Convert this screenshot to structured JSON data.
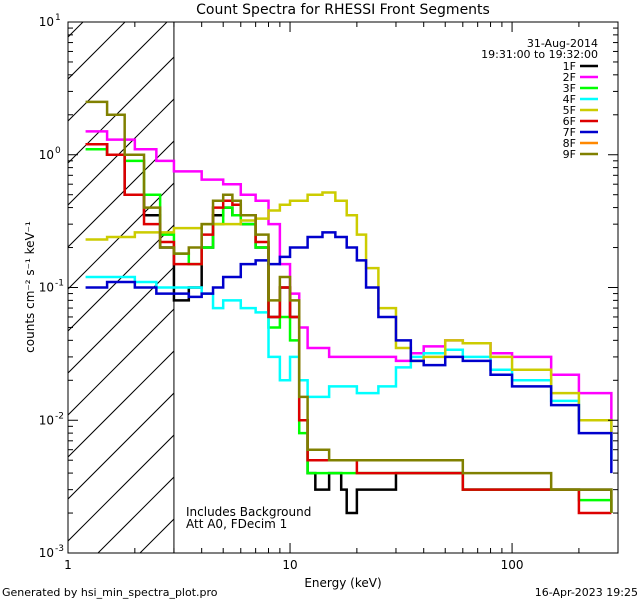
{
  "chart_data": {
    "type": "line",
    "title": "Count Spectra for RHESSI Front Segments",
    "xlabel": "Energy (keV)",
    "ylabel": "counts cm⁻² s⁻¹ keV⁻¹",
    "xscale": "log",
    "yscale": "log",
    "xlim": [
      1,
      300
    ],
    "ylim": [
      0.001,
      10
    ],
    "x_tick_labels": [
      {
        "value": 1,
        "label": "1"
      },
      {
        "value": 10,
        "label": "10"
      },
      {
        "value": 100,
        "label": "100"
      }
    ],
    "y_tick_labels": [
      {
        "value": 0.001,
        "base": "10",
        "exp": "-3"
      },
      {
        "value": 0.01,
        "base": "10",
        "exp": "-2"
      },
      {
        "value": 0.1,
        "base": "10",
        "exp": "-1"
      },
      {
        "value": 1,
        "base": "10",
        "exp": "0"
      },
      {
        "value": 10,
        "base": "10",
        "exp": "1"
      }
    ],
    "date_label": "31-Aug-2014",
    "time_range_label": "19:31:00 to 19:32:00",
    "excluded_region": {
      "x_from": 1,
      "x_to": 3
    },
    "annotations": [
      "Includes Background",
      "Att A0, FDecim 1"
    ],
    "footer_left": "Generated by hsi_min_spectra_plot.pro",
    "footer_right": "16-Apr-2023 19:25",
    "legend_position": "top-right",
    "series": [
      {
        "name": "1F",
        "color": "#000000",
        "points": [
          [
            1.2,
            1.2
          ],
          [
            1.5,
            1.0
          ],
          [
            1.8,
            0.5
          ],
          [
            2.2,
            0.35
          ],
          [
            2.6,
            0.2
          ],
          [
            3,
            0.08
          ],
          [
            3.5,
            0.1
          ],
          [
            4,
            0.2
          ],
          [
            4.5,
            0.35
          ],
          [
            5,
            0.4
          ],
          [
            5.5,
            0.35
          ],
          [
            6,
            0.3
          ],
          [
            7,
            0.2
          ],
          [
            8,
            0.06
          ],
          [
            9,
            0.1
          ],
          [
            10,
            0.06
          ],
          [
            11,
            0.01
          ],
          [
            12,
            0.004
          ],
          [
            13,
            0.003
          ],
          [
            15,
            0.004
          ],
          [
            17,
            0.003
          ],
          [
            18,
            0.002
          ],
          [
            20,
            0.003
          ],
          [
            25,
            0.003
          ],
          [
            30,
            0.004
          ],
          [
            40,
            0.004
          ],
          [
            60,
            0.003
          ],
          [
            80,
            0.003
          ],
          [
            100,
            0.003
          ],
          [
            150,
            0.003
          ],
          [
            200,
            0.003
          ],
          [
            280,
            0.002
          ]
        ]
      },
      {
        "name": "2F",
        "color": "#ff00ff",
        "points": [
          [
            1.2,
            1.5
          ],
          [
            1.5,
            1.3
          ],
          [
            2,
            1.1
          ],
          [
            2.5,
            0.9
          ],
          [
            3,
            0.75
          ],
          [
            4,
            0.65
          ],
          [
            5,
            0.6
          ],
          [
            6,
            0.5
          ],
          [
            7,
            0.45
          ],
          [
            8,
            0.3
          ],
          [
            9,
            0.15
          ],
          [
            10,
            0.09
          ],
          [
            11,
            0.05
          ],
          [
            12,
            0.035
          ],
          [
            15,
            0.03
          ],
          [
            20,
            0.03
          ],
          [
            25,
            0.03
          ],
          [
            30,
            0.028
          ],
          [
            35,
            0.032
          ],
          [
            40,
            0.036
          ],
          [
            50,
            0.04
          ],
          [
            60,
            0.038
          ],
          [
            80,
            0.032
          ],
          [
            100,
            0.03
          ],
          [
            150,
            0.022
          ],
          [
            200,
            0.016
          ],
          [
            280,
            0.008
          ]
        ]
      },
      {
        "name": "3F",
        "color": "#00ff00",
        "points": [
          [
            1.2,
            1.1
          ],
          [
            1.5,
            1.0
          ],
          [
            1.8,
            0.9
          ],
          [
            2.2,
            0.5
          ],
          [
            2.6,
            0.25
          ],
          [
            3,
            0.18
          ],
          [
            3.5,
            0.15
          ],
          [
            4,
            0.2
          ],
          [
            4.5,
            0.3
          ],
          [
            5,
            0.4
          ],
          [
            5.5,
            0.35
          ],
          [
            6,
            0.3
          ],
          [
            7,
            0.2
          ],
          [
            8,
            0.05
          ],
          [
            9,
            0.06
          ],
          [
            10,
            0.04
          ],
          [
            11,
            0.008
          ],
          [
            12,
            0.004
          ],
          [
            15,
            0.004
          ],
          [
            20,
            0.004
          ],
          [
            25,
            0.004
          ],
          [
            30,
            0.004
          ],
          [
            40,
            0.004
          ],
          [
            60,
            0.003
          ],
          [
            80,
            0.003
          ],
          [
            100,
            0.003
          ],
          [
            150,
            0.003
          ],
          [
            200,
            0.0025
          ],
          [
            280,
            0.002
          ]
        ]
      },
      {
        "name": "4F",
        "color": "#00ffff",
        "points": [
          [
            1.2,
            0.12
          ],
          [
            1.5,
            0.12
          ],
          [
            2,
            0.11
          ],
          [
            2.5,
            0.1
          ],
          [
            3,
            0.1
          ],
          [
            3.5,
            0.1
          ],
          [
            4,
            0.09
          ],
          [
            4.5,
            0.07
          ],
          [
            5,
            0.08
          ],
          [
            6,
            0.07
          ],
          [
            7,
            0.065
          ],
          [
            8,
            0.03
          ],
          [
            9,
            0.02
          ],
          [
            10,
            0.03
          ],
          [
            11,
            0.02
          ],
          [
            12,
            0.015
          ],
          [
            15,
            0.018
          ],
          [
            20,
            0.016
          ],
          [
            25,
            0.018
          ],
          [
            30,
            0.025
          ],
          [
            35,
            0.03
          ],
          [
            40,
            0.032
          ],
          [
            50,
            0.034
          ],
          [
            60,
            0.03
          ],
          [
            80,
            0.024
          ],
          [
            100,
            0.02
          ],
          [
            150,
            0.014
          ],
          [
            200,
            0.01
          ],
          [
            280,
            0.005
          ]
        ]
      },
      {
        "name": "5F",
        "color": "#cccc00",
        "points": [
          [
            1.2,
            0.23
          ],
          [
            1.5,
            0.24
          ],
          [
            2,
            0.26
          ],
          [
            2.5,
            0.26
          ],
          [
            3,
            0.28
          ],
          [
            4,
            0.3
          ],
          [
            5,
            0.3
          ],
          [
            6,
            0.32
          ],
          [
            7,
            0.33
          ],
          [
            8,
            0.38
          ],
          [
            9,
            0.42
          ],
          [
            10,
            0.45
          ],
          [
            12,
            0.5
          ],
          [
            14,
            0.52
          ],
          [
            16,
            0.45
          ],
          [
            18,
            0.35
          ],
          [
            20,
            0.25
          ],
          [
            22,
            0.14
          ],
          [
            25,
            0.07
          ],
          [
            30,
            0.035
          ],
          [
            35,
            0.028
          ],
          [
            40,
            0.03
          ],
          [
            50,
            0.04
          ],
          [
            60,
            0.038
          ],
          [
            80,
            0.03
          ],
          [
            100,
            0.024
          ],
          [
            150,
            0.016
          ],
          [
            200,
            0.01
          ],
          [
            280,
            0.006
          ]
        ]
      },
      {
        "name": "6F",
        "color": "#dd0000",
        "points": [
          [
            1.2,
            1.2
          ],
          [
            1.5,
            1.0
          ],
          [
            1.8,
            0.5
          ],
          [
            2.2,
            0.3
          ],
          [
            2.6,
            0.22
          ],
          [
            3,
            0.15
          ],
          [
            3.5,
            0.15
          ],
          [
            4,
            0.25
          ],
          [
            4.5,
            0.4
          ],
          [
            5,
            0.45
          ],
          [
            5.5,
            0.42
          ],
          [
            6,
            0.35
          ],
          [
            7,
            0.22
          ],
          [
            8,
            0.06
          ],
          [
            9,
            0.1
          ],
          [
            10,
            0.06
          ],
          [
            11,
            0.01
          ],
          [
            12,
            0.005
          ],
          [
            15,
            0.005
          ],
          [
            20,
            0.004
          ],
          [
            25,
            0.004
          ],
          [
            30,
            0.004
          ],
          [
            40,
            0.004
          ],
          [
            60,
            0.003
          ],
          [
            80,
            0.003
          ],
          [
            100,
            0.003
          ],
          [
            150,
            0.003
          ],
          [
            200,
            0.002
          ],
          [
            280,
            0.002
          ]
        ]
      },
      {
        "name": "7F",
        "color": "#0000cc",
        "points": [
          [
            1.2,
            0.1
          ],
          [
            1.5,
            0.11
          ],
          [
            2,
            0.1
          ],
          [
            2.5,
            0.09
          ],
          [
            3,
            0.09
          ],
          [
            3.5,
            0.085
          ],
          [
            4,
            0.09
          ],
          [
            4.5,
            0.1
          ],
          [
            5,
            0.12
          ],
          [
            6,
            0.15
          ],
          [
            7,
            0.16
          ],
          [
            8,
            0.15
          ],
          [
            9,
            0.17
          ],
          [
            10,
            0.2
          ],
          [
            12,
            0.24
          ],
          [
            14,
            0.26
          ],
          [
            16,
            0.24
          ],
          [
            18,
            0.2
          ],
          [
            20,
            0.16
          ],
          [
            22,
            0.1
          ],
          [
            25,
            0.06
          ],
          [
            30,
            0.04
          ],
          [
            35,
            0.028
          ],
          [
            40,
            0.026
          ],
          [
            50,
            0.03
          ],
          [
            60,
            0.028
          ],
          [
            80,
            0.022
          ],
          [
            100,
            0.018
          ],
          [
            150,
            0.013
          ],
          [
            200,
            0.008
          ],
          [
            280,
            0.004
          ]
        ]
      },
      {
        "name": "8F",
        "color": "#ff8800",
        "points": []
      },
      {
        "name": "9F",
        "color": "#808000",
        "points": [
          [
            1.2,
            2.5
          ],
          [
            1.5,
            2.0
          ],
          [
            1.8,
            1.0
          ],
          [
            2.2,
            0.4
          ],
          [
            2.6,
            0.2
          ],
          [
            3,
            0.18
          ],
          [
            3.5,
            0.2
          ],
          [
            4,
            0.3
          ],
          [
            4.5,
            0.45
          ],
          [
            5,
            0.5
          ],
          [
            5.5,
            0.45
          ],
          [
            6,
            0.35
          ],
          [
            7,
            0.25
          ],
          [
            8,
            0.08
          ],
          [
            9,
            0.12
          ],
          [
            10,
            0.08
          ],
          [
            11,
            0.015
          ],
          [
            12,
            0.006
          ],
          [
            15,
            0.005
          ],
          [
            20,
            0.005
          ],
          [
            25,
            0.005
          ],
          [
            30,
            0.005
          ],
          [
            40,
            0.005
          ],
          [
            60,
            0.004
          ],
          [
            80,
            0.004
          ],
          [
            100,
            0.004
          ],
          [
            150,
            0.003
          ],
          [
            200,
            0.003
          ],
          [
            280,
            0.002
          ]
        ]
      }
    ]
  }
}
